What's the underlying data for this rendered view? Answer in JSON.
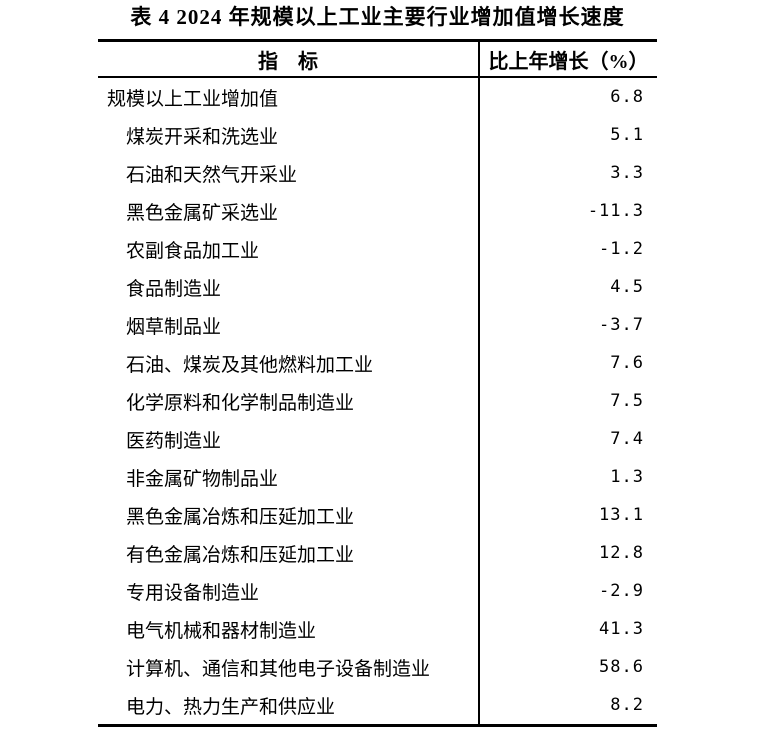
{
  "page": {
    "title": "表 4  2024 年规模以上工业主要行业增加值增长速度"
  },
  "table": {
    "columns": [
      "指　标",
      "比上年增长（%）"
    ],
    "rows": [
      {
        "label": "规模以上工业增加值",
        "value": "6.8",
        "indent": 0
      },
      {
        "label": "煤炭开采和洗选业",
        "value": "5.1",
        "indent": 1
      },
      {
        "label": "石油和天然气开采业",
        "value": "3.3",
        "indent": 1
      },
      {
        "label": "黑色金属矿采选业",
        "value": "-11.3",
        "indent": 1
      },
      {
        "label": "农副食品加工业",
        "value": "-1.2",
        "indent": 1
      },
      {
        "label": "食品制造业",
        "value": "4.5",
        "indent": 1
      },
      {
        "label": "烟草制品业",
        "value": "-3.7",
        "indent": 1
      },
      {
        "label": "石油、煤炭及其他燃料加工业",
        "value": "7.6",
        "indent": 1
      },
      {
        "label": "化学原料和化学制品制造业",
        "value": "7.5",
        "indent": 1
      },
      {
        "label": "医药制造业",
        "value": "7.4",
        "indent": 1
      },
      {
        "label": "非金属矿物制品业",
        "value": "1.3",
        "indent": 1
      },
      {
        "label": "黑色金属冶炼和压延加工业",
        "value": "13.1",
        "indent": 1
      },
      {
        "label": "有色金属冶炼和压延加工业",
        "value": "12.8",
        "indent": 1
      },
      {
        "label": "专用设备制造业",
        "value": "-2.9",
        "indent": 1
      },
      {
        "label": "电气机械和器材制造业",
        "value": "41.3",
        "indent": 1
      },
      {
        "label": "计算机、通信和其他电子设备制造业",
        "value": "58.6",
        "indent": 1
      },
      {
        "label": "电力、热力生产和供应业",
        "value": "8.2",
        "indent": 1
      }
    ]
  },
  "colors": {
    "text": "#000000",
    "background": "#ffffff",
    "rule": "#000000"
  }
}
